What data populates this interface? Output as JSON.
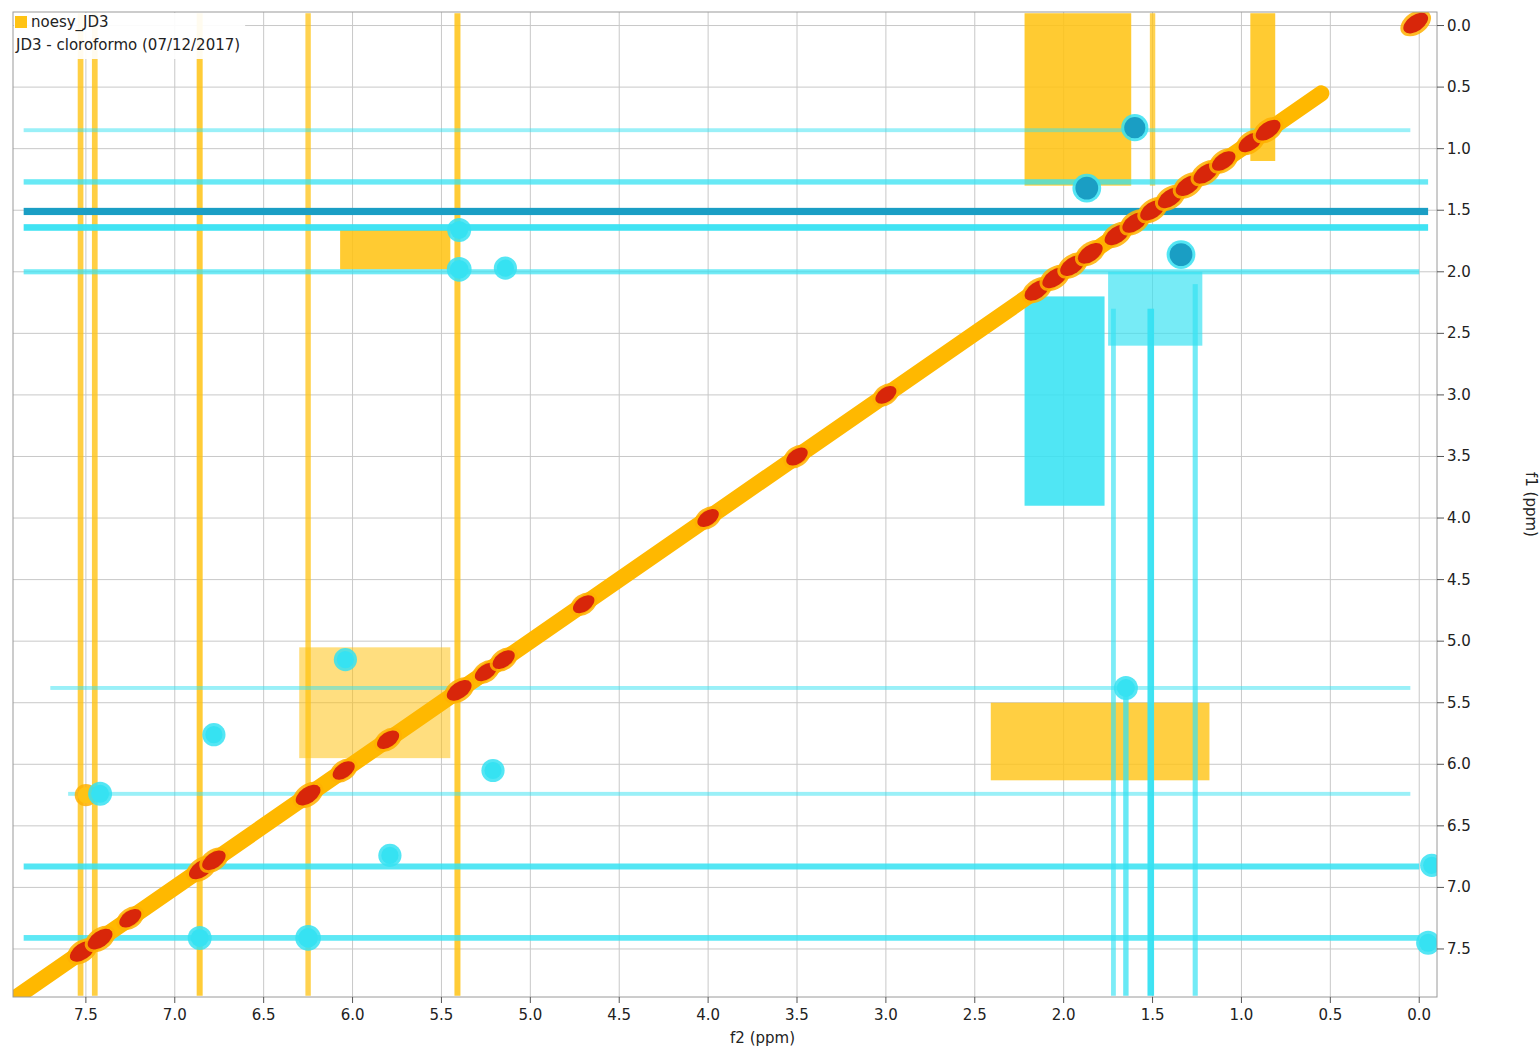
{
  "chart_data": {
    "type": "contour",
    "title": "noesy_JD3",
    "subtitle": "JD3 - cloroformo (07/12/2017)",
    "x_label": "f2 (ppm)",
    "y_label": "f1 (ppm)",
    "xlim": [
      7.91,
      -0.1
    ],
    "ylim": [
      -0.11,
      7.89
    ],
    "xticks": [
      7.5,
      {
        "value": 7,
        "label": "7.0"
      },
      6.5,
      {
        "value": 6,
        "label": "6.0"
      },
      5.5,
      {
        "value": 5,
        "label": "5.0"
      },
      4.5,
      {
        "value": 4,
        "label": "4.0"
      },
      3.5,
      {
        "value": 3,
        "label": "3.0"
      },
      2.5,
      {
        "value": 2,
        "label": "2.0"
      },
      1.5,
      {
        "value": 1,
        "label": "1.0"
      },
      0.5,
      {
        "value": 0,
        "label": "0.0"
      }
    ],
    "yticks": [
      {
        "value": 0,
        "label": "0.0"
      },
      0.5,
      {
        "value": 1,
        "label": "1.0"
      },
      1.5,
      {
        "value": 2,
        "label": "2.0"
      },
      2.5,
      {
        "value": 3,
        "label": "3.0"
      },
      3.5,
      {
        "value": 4,
        "label": "4.0"
      },
      4.5,
      {
        "value": 5,
        "label": "5.0"
      },
      5.5,
      {
        "value": 6,
        "label": "6.0"
      },
      6.5,
      {
        "value": 7,
        "label": "7.0"
      },
      7.5
    ],
    "grid": true,
    "diagonal": {
      "x": [
        7.9,
        0.55
      ],
      "y": [
        7.9,
        0.55
      ]
    },
    "regions": [
      {
        "x": [
          2.22,
          1.62
        ],
        "y": [
          -0.1,
          1.3
        ],
        "value": 0.4
      },
      {
        "x": [
          0.95,
          0.81
        ],
        "y": [
          -0.1,
          1.1
        ],
        "value": 0.4
      },
      {
        "x": [
          2.41,
          1.18
        ],
        "y": [
          5.5,
          6.13
        ],
        "value": 0.35
      },
      {
        "x": [
          6.07,
          5.45
        ],
        "y": [
          1.66,
          1.98
        ],
        "value": 0.4
      },
      {
        "x": [
          6.3,
          5.45
        ],
        "y": [
          5.05,
          5.95
        ],
        "value": 0.15
      },
      {
        "x": [
          2.22,
          1.77
        ],
        "y": [
          2.2,
          3.9
        ],
        "value": -0.4
      },
      {
        "x": [
          1.75,
          1.22
        ],
        "y": [
          2.0,
          2.6
        ],
        "value": -0.25
      }
    ],
    "streaks_f2": [
      {
        "position": 7.53,
        "from": -0.1,
        "to": 7.88,
        "value": 0.45
      },
      {
        "position": 7.45,
        "from": -0.1,
        "to": 7.88,
        "value": 0.45
      },
      {
        "position": 6.86,
        "from": -0.1,
        "to": 7.88,
        "value": 0.5
      },
      {
        "position": 6.25,
        "from": -0.1,
        "to": 7.88,
        "value": 0.4
      },
      {
        "position": 5.41,
        "from": -0.1,
        "to": 7.88,
        "value": 0.5
      },
      {
        "position": 1.5,
        "from": -0.1,
        "to": 1.3,
        "value": 0.4
      },
      {
        "position": 1.51,
        "from": 2.3,
        "to": 7.88,
        "value": -0.6
      },
      {
        "position": 1.65,
        "from": 5.4,
        "to": 7.88,
        "value": -0.4
      },
      {
        "position": 1.72,
        "from": 2.3,
        "to": 7.88,
        "value": -0.3
      },
      {
        "position": 1.26,
        "from": 2.1,
        "to": 7.88,
        "value": -0.35
      }
    ],
    "streaks_f1": [
      {
        "position": 0.85,
        "from": 7.85,
        "to": 0.05,
        "value": -0.15
      },
      {
        "position": 1.27,
        "from": 7.85,
        "to": -0.05,
        "value": -0.4
      },
      {
        "position": 1.51,
        "from": 7.85,
        "to": -0.05,
        "value": -0.7
      },
      {
        "position": 1.64,
        "from": 7.85,
        "to": -0.05,
        "value": -0.6
      },
      {
        "position": 2.0,
        "from": 7.85,
        "to": 0.0,
        "value": -0.35
      },
      {
        "position": 5.38,
        "from": 7.7,
        "to": 0.05,
        "value": -0.15
      },
      {
        "position": 6.24,
        "from": 7.6,
        "to": 0.05,
        "value": -0.15
      },
      {
        "position": 6.83,
        "from": 7.85,
        "to": 0.0,
        "value": -0.5
      },
      {
        "position": 7.41,
        "from": 7.85,
        "to": 0.0,
        "value": -0.45
      }
    ],
    "peaks": [
      {
        "x": 7.52,
        "y": 7.52,
        "value": 1.0
      },
      {
        "x": 7.42,
        "y": 7.42,
        "value": 1.0
      },
      {
        "x": 7.25,
        "y": 7.25,
        "value": 0.8
      },
      {
        "x": 6.85,
        "y": 6.85,
        "value": 1.0
      },
      {
        "x": 6.78,
        "y": 6.78,
        "value": 0.9
      },
      {
        "x": 6.25,
        "y": 6.25,
        "value": 1.0
      },
      {
        "x": 6.05,
        "y": 6.05,
        "value": 0.8
      },
      {
        "x": 5.8,
        "y": 5.8,
        "value": 0.8
      },
      {
        "x": 5.4,
        "y": 5.4,
        "value": 1.0
      },
      {
        "x": 5.25,
        "y": 5.25,
        "value": 0.8
      },
      {
        "x": 5.15,
        "y": 5.15,
        "value": 0.8
      },
      {
        "x": 4.7,
        "y": 4.7,
        "value": 0.75
      },
      {
        "x": 4.0,
        "y": 4.0,
        "value": 0.75
      },
      {
        "x": 3.5,
        "y": 3.5,
        "value": 0.75
      },
      {
        "x": 3.0,
        "y": 3.0,
        "value": 0.72
      },
      {
        "x": 2.15,
        "y": 2.15,
        "value": 1.0
      },
      {
        "x": 2.05,
        "y": 2.05,
        "value": 1.0
      },
      {
        "x": 1.95,
        "y": 1.95,
        "value": 1.0
      },
      {
        "x": 1.85,
        "y": 1.85,
        "value": 1.0
      },
      {
        "x": 1.7,
        "y": 1.7,
        "value": 1.0
      },
      {
        "x": 1.6,
        "y": 1.6,
        "value": 1.0
      },
      {
        "x": 1.5,
        "y": 1.5,
        "value": 1.0
      },
      {
        "x": 1.4,
        "y": 1.4,
        "value": 1.0
      },
      {
        "x": 1.3,
        "y": 1.3,
        "value": 1.0
      },
      {
        "x": 1.2,
        "y": 1.2,
        "value": 1.0
      },
      {
        "x": 1.1,
        "y": 1.1,
        "value": 0.9
      },
      {
        "x": 0.95,
        "y": 0.95,
        "value": 0.9
      },
      {
        "x": 0.85,
        "y": 0.85,
        "value": 1.0
      },
      {
        "x": 0.02,
        "y": -0.02,
        "value": 1.0
      },
      {
        "x": 7.5,
        "y": 6.25,
        "value": 0.4
      },
      {
        "x": 7.42,
        "y": 6.24,
        "value": -0.5
      },
      {
        "x": 6.86,
        "y": 7.41,
        "value": -0.5
      },
      {
        "x": 6.25,
        "y": 7.41,
        "value": -0.6
      },
      {
        "x": 6.78,
        "y": 5.76,
        "value": -0.45
      },
      {
        "x": 6.04,
        "y": 5.15,
        "value": -0.45
      },
      {
        "x": 5.79,
        "y": 6.74,
        "value": -0.45
      },
      {
        "x": 5.21,
        "y": 6.05,
        "value": -0.45
      },
      {
        "x": 5.4,
        "y": 1.66,
        "value": -0.5
      },
      {
        "x": 5.4,
        "y": 1.98,
        "value": -0.55
      },
      {
        "x": 5.14,
        "y": 1.97,
        "value": -0.45
      },
      {
        "x": 1.87,
        "y": 1.32,
        "value": -0.8
      },
      {
        "x": 1.6,
        "y": 0.83,
        "value": -0.7
      },
      {
        "x": 1.34,
        "y": 1.86,
        "value": -0.8
      },
      {
        "x": 1.65,
        "y": 5.38,
        "value": -0.5
      },
      {
        "x": -0.07,
        "y": 6.82,
        "value": -0.45
      },
      {
        "x": -0.05,
        "y": 7.45,
        "value": -0.5
      }
    ]
  }
}
